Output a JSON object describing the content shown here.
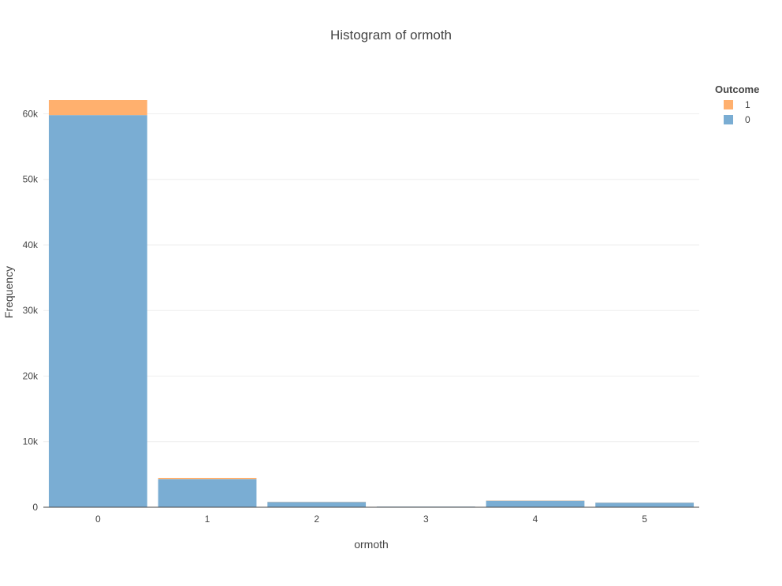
{
  "chart_data": {
    "type": "bar",
    "barmode": "stack",
    "title": "Histogram of ormoth",
    "xlabel": "ormoth",
    "ylabel": "Frequency",
    "categories": [
      "0",
      "1",
      "2",
      "3",
      "4",
      "5"
    ],
    "series": [
      {
        "name": "0",
        "color": "#7aadd3",
        "values": [
          59800,
          4300,
          800,
          100,
          1000,
          700
        ]
      },
      {
        "name": "1",
        "color": "#ffb06e",
        "values": [
          2300,
          150,
          30,
          5,
          30,
          20
        ]
      }
    ],
    "ylim": [
      0,
      62100
    ],
    "yticks": [
      0,
      10000,
      20000,
      30000,
      40000,
      50000,
      60000
    ],
    "ytick_labels": [
      "0",
      "10k",
      "20k",
      "30k",
      "40k",
      "50k",
      "60k"
    ],
    "grid": true,
    "legend": {
      "title": "Outcome",
      "position": "top-right",
      "entries": [
        {
          "label": "1",
          "color": "#ffb06e"
        },
        {
          "label": "0",
          "color": "#7aadd3"
        }
      ]
    }
  }
}
